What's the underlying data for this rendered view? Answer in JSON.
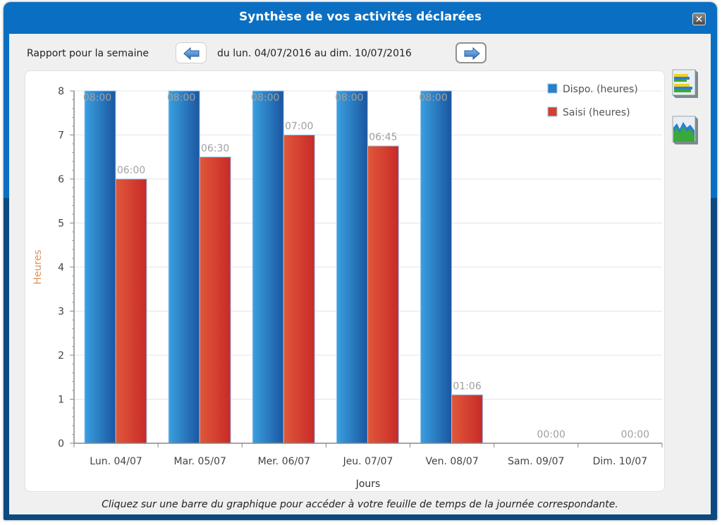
{
  "window": {
    "title": "Synthèse de vos activités déclarées",
    "close_label": "✕"
  },
  "toolbar": {
    "report_label": "Rapport pour la semaine",
    "period_label": "du lun. 04/07/2016 au dim. 10/07/2016",
    "prev_icon": "arrow-left-icon",
    "next_icon": "arrow-right-icon"
  },
  "side_icons": [
    {
      "name": "bar-chart-icon"
    },
    {
      "name": "area-chart-icon"
    }
  ],
  "footer": {
    "hint": "Cliquez sur une barre du graphique pour accéder à votre feuille de temps de la journée correspondante."
  },
  "colors": {
    "dispo": "#2a7fc6",
    "saisi": "#d4402f",
    "title_bar": "#0a6fc2",
    "ylabel": "#e0915e"
  },
  "chart_data": {
    "type": "bar",
    "title": "",
    "xlabel": "Jours",
    "ylabel": "Heures",
    "ylim": [
      0,
      8
    ],
    "yticks": [
      0,
      1,
      2,
      3,
      4,
      5,
      6,
      7,
      8
    ],
    "grid": true,
    "legend": "top-right",
    "categories": [
      "Lun. 04/07",
      "Mar. 05/07",
      "Mer. 06/07",
      "Jeu. 07/07",
      "Ven. 08/07",
      "Sam. 09/07",
      "Dim. 10/07"
    ],
    "series": [
      {
        "name": "Dispo. (heures)",
        "values": [
          8,
          8,
          8,
          8,
          8,
          0,
          0
        ],
        "labels": [
          "08:00",
          "08:00",
          "08:00",
          "08:00",
          "08:00",
          "",
          ""
        ]
      },
      {
        "name": "Saisi (heures)",
        "values": [
          6,
          6.5,
          7,
          6.75,
          1.1,
          0,
          0
        ],
        "labels": [
          "06:00",
          "06:30",
          "07:00",
          "06:45",
          "01:06",
          "00:00",
          "00:00"
        ]
      }
    ]
  }
}
